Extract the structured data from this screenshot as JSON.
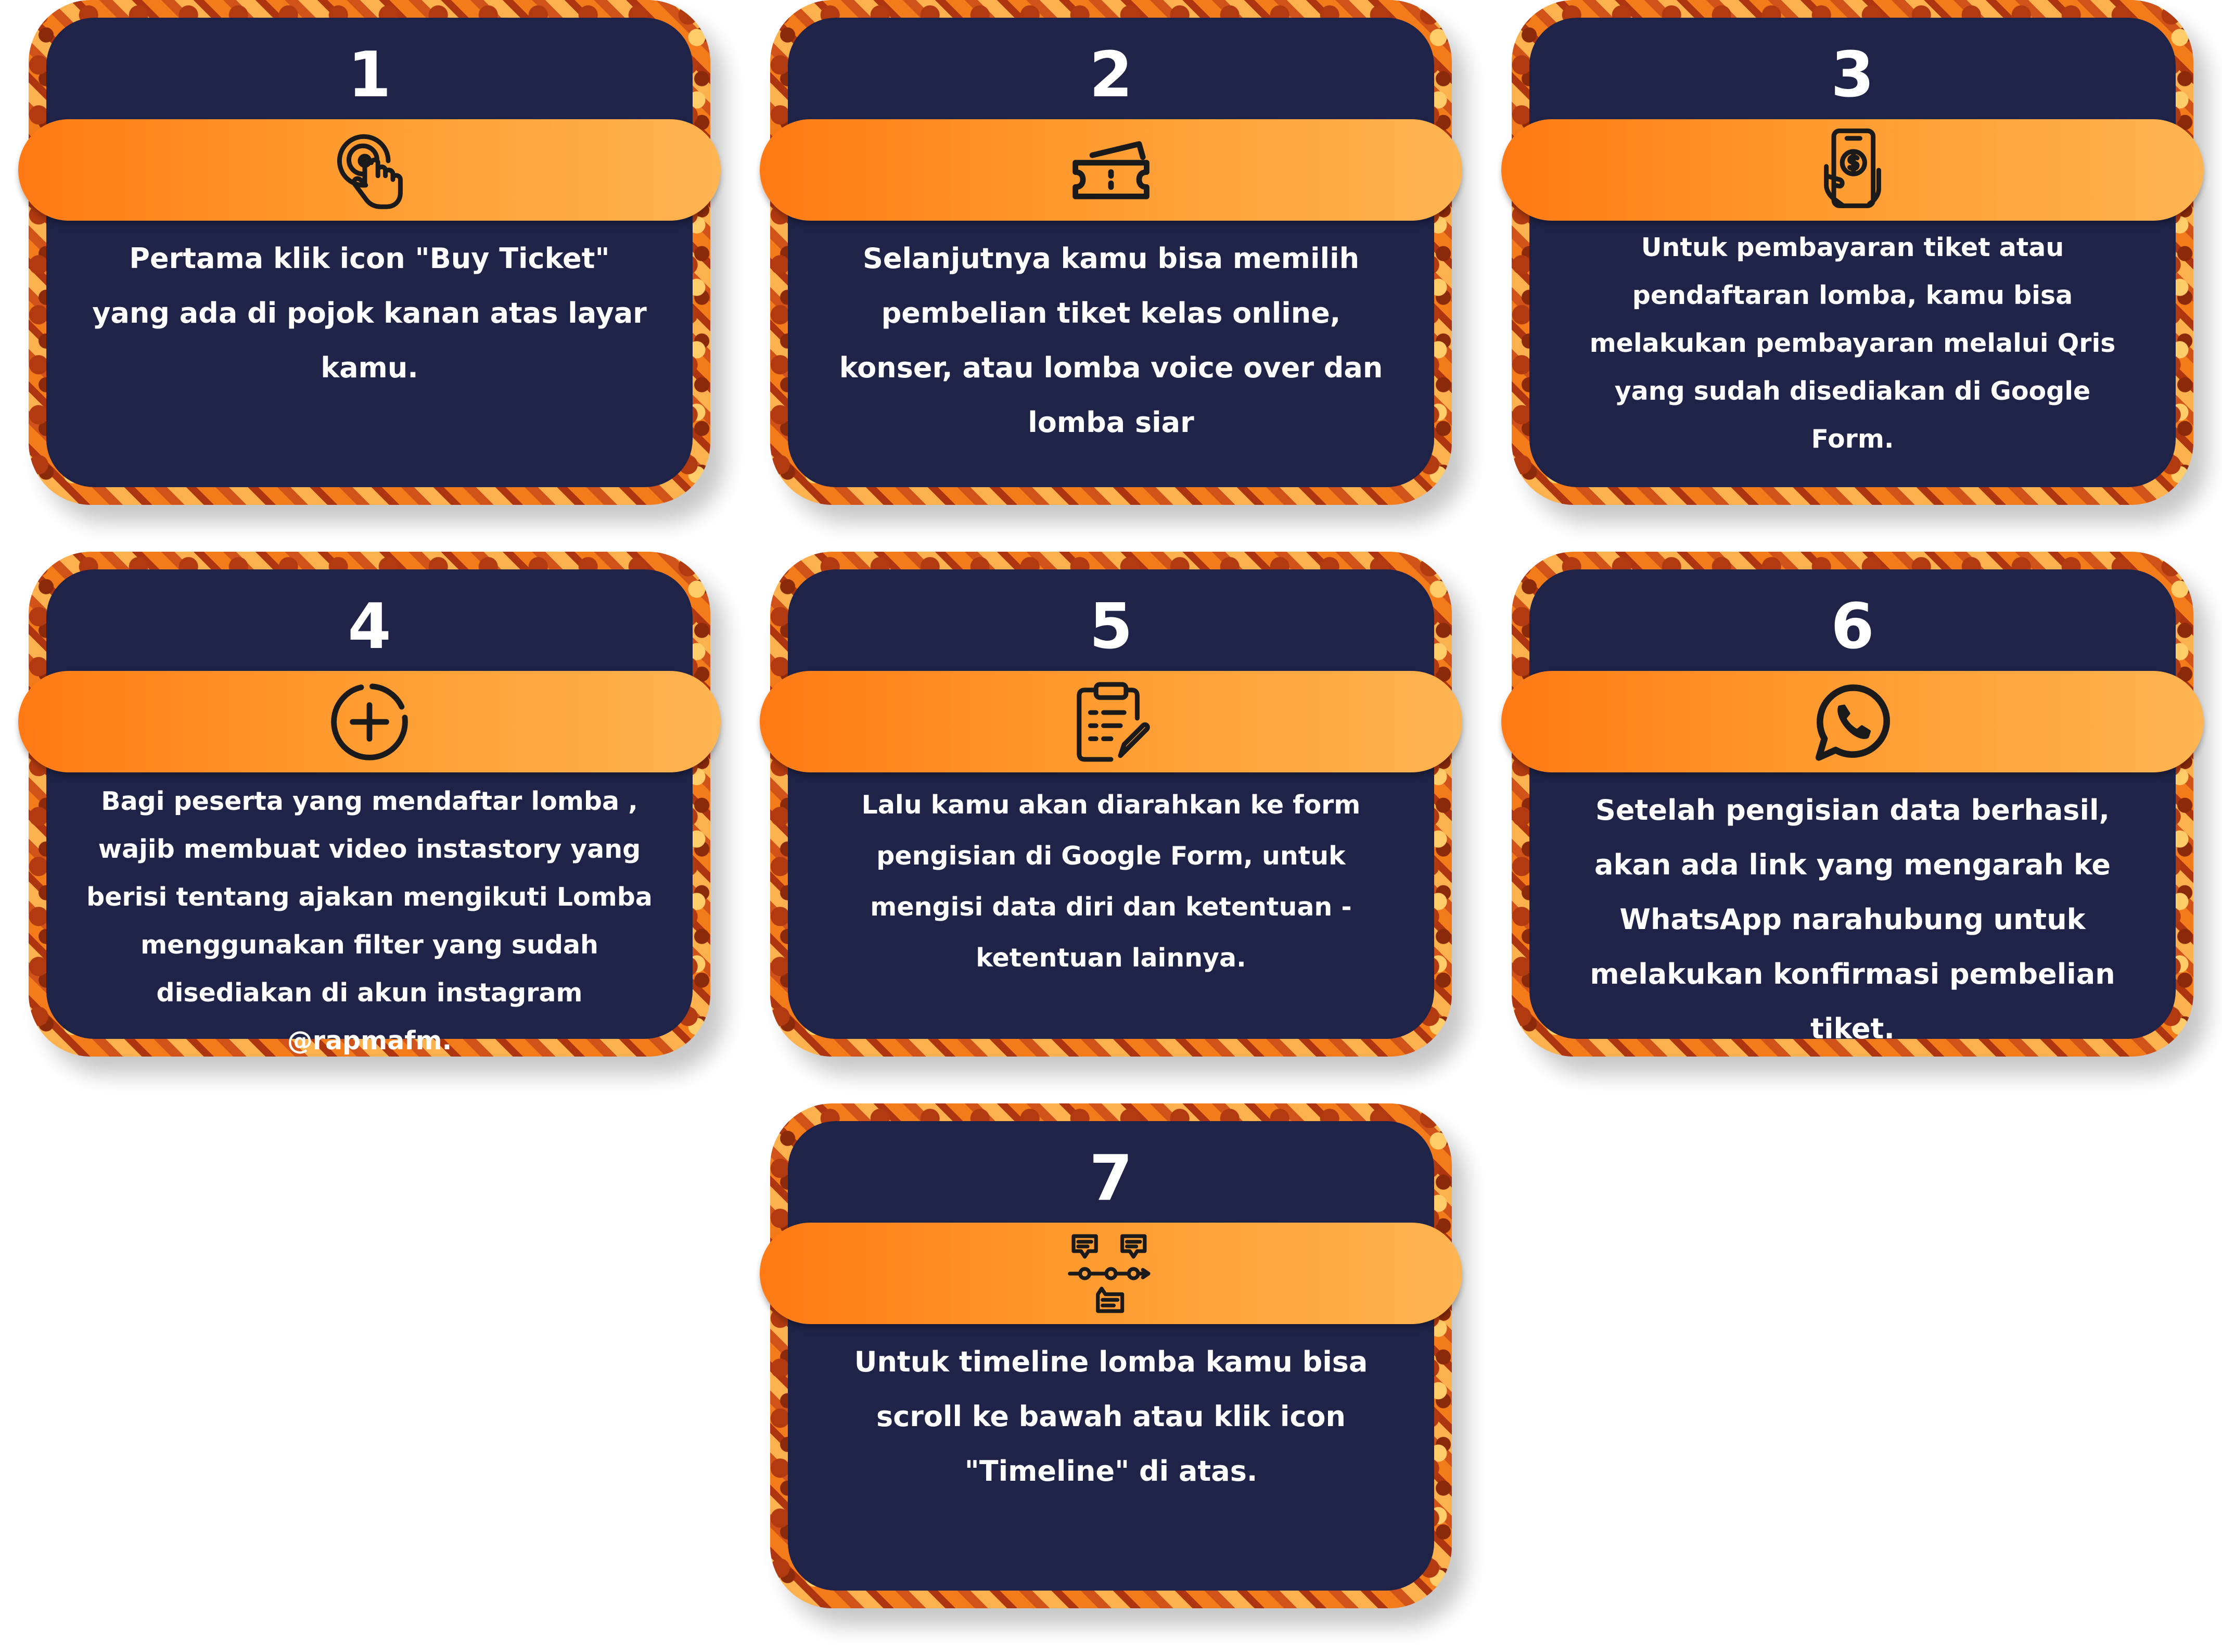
{
  "steps": [
    {
      "number": "1",
      "icon": "tap-finger-icon",
      "text": "Pertama klik icon \"Buy Ticket\" yang ada di pojok kanan atas layar kamu."
    },
    {
      "number": "2",
      "icon": "ticket-icon",
      "text": "Selanjutnya kamu bisa memilih pembelian tiket kelas online, konser, atau lomba voice over dan lomba siar"
    },
    {
      "number": "3",
      "icon": "mobile-payment-icon",
      "text": "Untuk pembayaran tiket atau pendaftaran lomba, kamu bisa melakukan pembayaran melalui Qris yang sudah disediakan di Google Form."
    },
    {
      "number": "4",
      "icon": "add-circle-icon",
      "text": "Bagi peserta yang mendaftar lomba , wajib membuat video instastory yang berisi tentang ajakan mengikuti Lomba menggunakan filter yang sudah disediakan di akun instagram @rapmafm."
    },
    {
      "number": "5",
      "icon": "clipboard-edit-icon",
      "text": "Lalu kamu akan diarahkan ke form pengisian di Google Form, untuk mengisi data diri dan ketentuan - ketentuan lainnya."
    },
    {
      "number": "6",
      "icon": "whatsapp-icon",
      "text": "Setelah pengisian data berhasil, akan ada link yang mengarah ke WhatsApp narahubung untuk melakukan konfirmasi pembelian tiket."
    },
    {
      "number": "7",
      "icon": "timeline-icon",
      "text": "Untuk timeline lomba kamu bisa scroll ke bawah atau klik icon \"Timeline\" di atas."
    }
  ],
  "colors": {
    "card_inner": "#1f2347",
    "band_start": "#ff7a14",
    "band_end": "#fdb452",
    "text": "#ffffff",
    "icon": "#1a1a1a"
  }
}
